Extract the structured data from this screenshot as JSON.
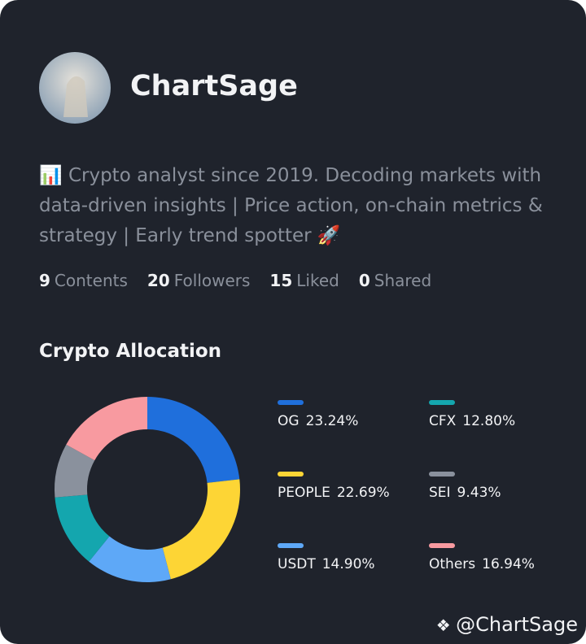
{
  "profile": {
    "name": "ChartSage",
    "bio": "📊 Crypto analyst since 2019. Decoding markets with data-driven insights | Price action, on-chain metrics & strategy | Early trend spotter 🚀",
    "stats": [
      {
        "count": 9,
        "label": "Contents"
      },
      {
        "count": 20,
        "label": "Followers"
      },
      {
        "count": 15,
        "label": "Liked"
      },
      {
        "count": 0,
        "label": "Shared"
      }
    ],
    "watermark": "@ChartSage"
  },
  "chart_data": {
    "type": "donut",
    "title": "Crypto Allocation",
    "categories": [
      "OG",
      "PEOPLE",
      "USDT",
      "CFX",
      "SEI",
      "Others"
    ],
    "values": [
      23.24,
      22.69,
      14.9,
      12.8,
      9.43,
      16.94
    ],
    "value_labels": [
      "23.24%",
      "22.69%",
      "14.90%",
      "12.80%",
      "9.43%",
      "16.94%"
    ],
    "colors": [
      "#1f6fdc",
      "#fdd535",
      "#5ea8f7",
      "#14a6ae",
      "#8a919d",
      "#f89aa0"
    ]
  }
}
